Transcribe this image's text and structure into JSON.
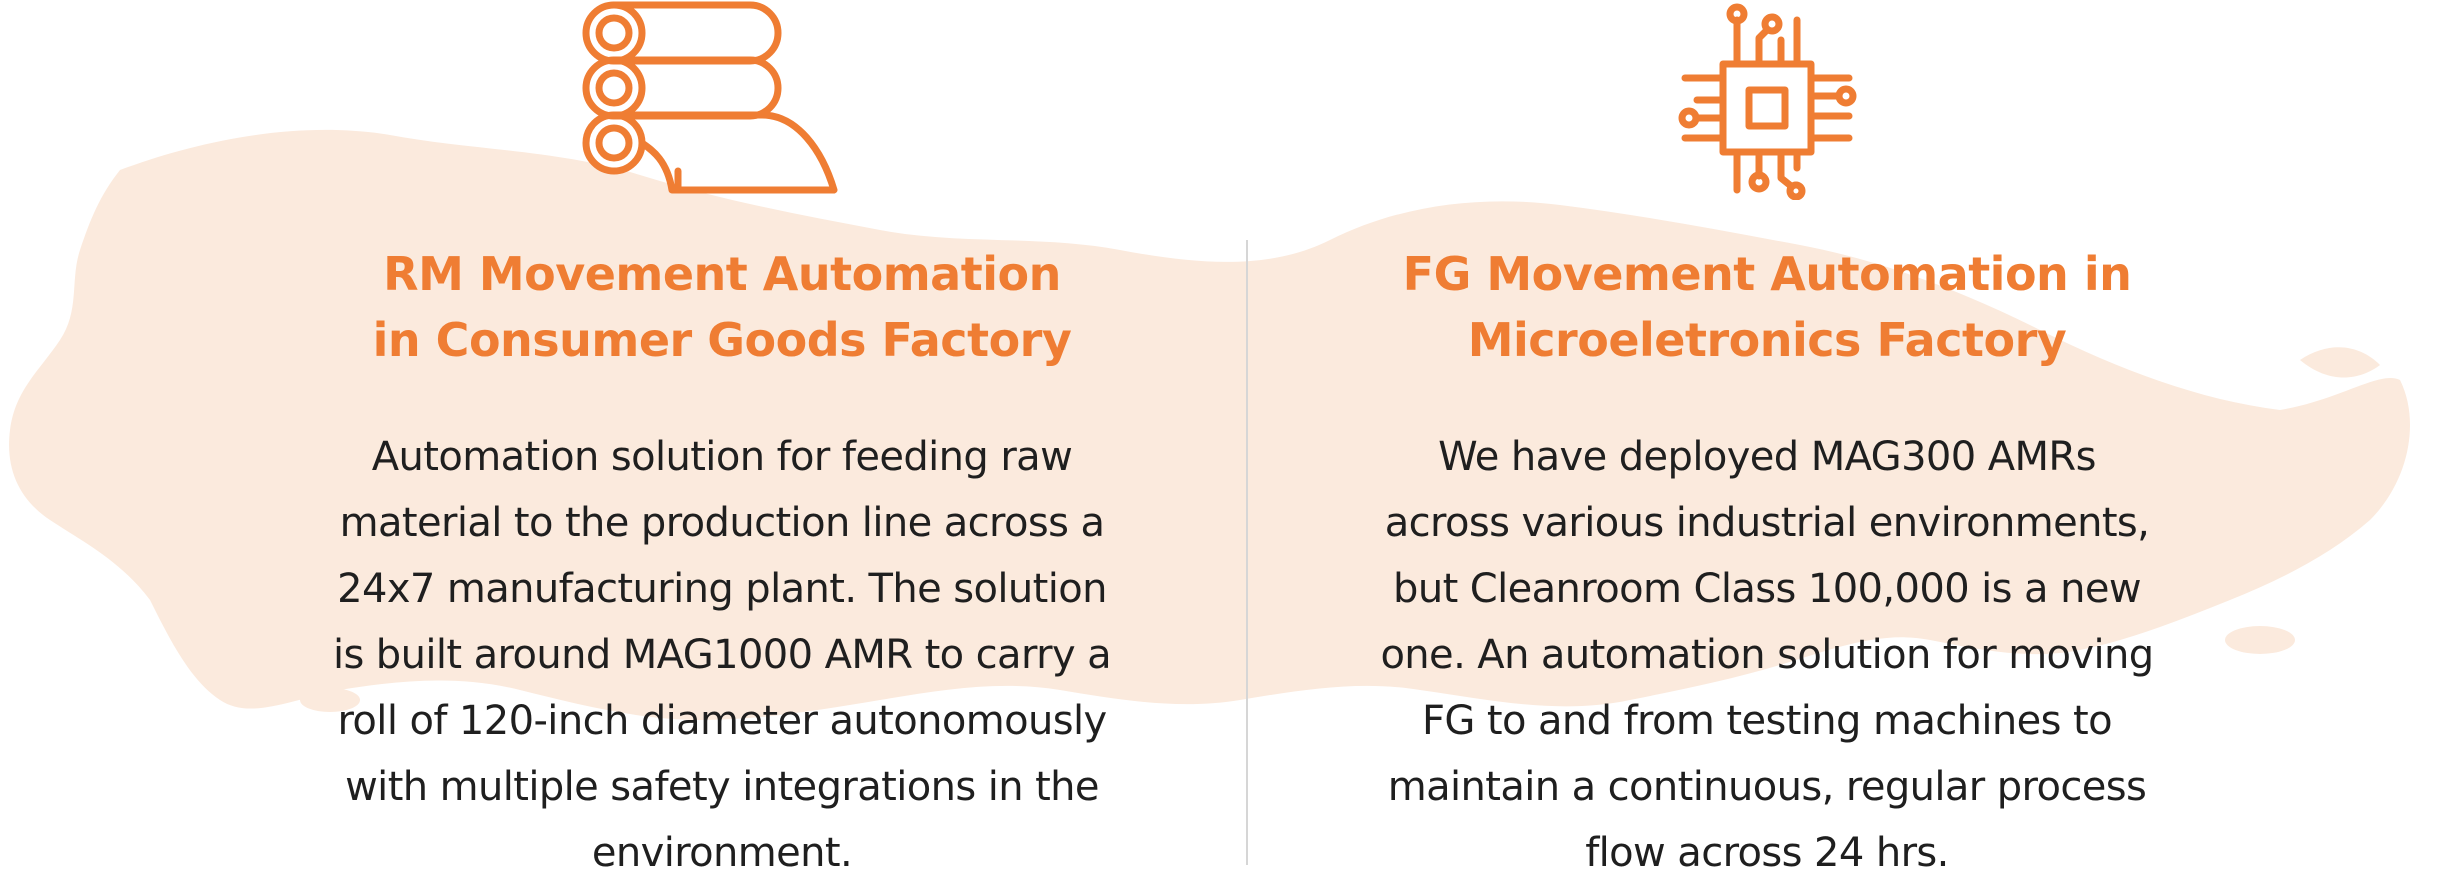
{
  "colors": {
    "accent": "#ef7d33",
    "body_text": "#1f1f1f",
    "map_tint": "#fbeadd",
    "divider": "#d6d6d6"
  },
  "cards": [
    {
      "icon": "fabric-rolls-icon",
      "title_lines": [
        "RM Movement Automation",
        "in Consumer Goods Factory"
      ],
      "body_lines": [
        "Automation solution for feeding raw",
        "material to the production line across a",
        "24x7 manufacturing plant. The solution",
        "is built around MAG1000 AMR to carry a",
        "roll of 120-inch diameter autonomously",
        "with multiple safety integrations in the",
        "environment."
      ]
    },
    {
      "icon": "microchip-icon",
      "title_lines": [
        "FG Movement Automation in",
        "Microeletronics Factory"
      ],
      "body_lines": [
        "We have deployed MAG300 AMRs",
        "across various industrial environments,",
        "but Cleanroom Class 100,000 is a new",
        "one. An automation solution for moving",
        "FG to and from testing machines to",
        "maintain a continuous, regular process",
        "flow across 24 hrs."
      ]
    }
  ]
}
